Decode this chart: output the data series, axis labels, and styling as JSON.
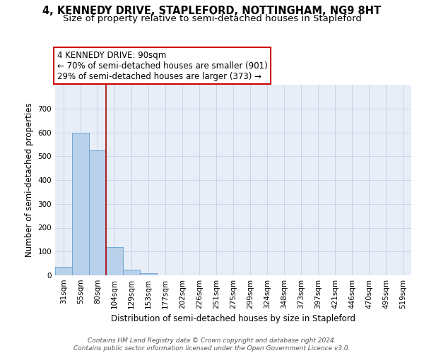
{
  "title": "4, KENNEDY DRIVE, STAPLEFORD, NOTTINGHAM, NG9 8HT",
  "subtitle": "Size of property relative to semi-detached houses in Stapleford",
  "xlabel": "Distribution of semi-detached houses by size in Stapleford",
  "ylabel": "Number of semi-detached properties",
  "categories": [
    "31sqm",
    "55sqm",
    "80sqm",
    "104sqm",
    "129sqm",
    "153sqm",
    "177sqm",
    "202sqm",
    "226sqm",
    "251sqm",
    "275sqm",
    "299sqm",
    "324sqm",
    "348sqm",
    "373sqm",
    "397sqm",
    "421sqm",
    "446sqm",
    "470sqm",
    "495sqm",
    "519sqm"
  ],
  "values": [
    35,
    600,
    525,
    120,
    25,
    10,
    0,
    0,
    0,
    0,
    0,
    0,
    0,
    0,
    0,
    0,
    0,
    0,
    0,
    0,
    0
  ],
  "bar_color": "#b8d0ea",
  "bar_edge_color": "#6fa8d6",
  "grid_color": "#c8d4e8",
  "background_color": "#e8eef8",
  "red_line_x": 2.5,
  "annotation_text": "4 KENNEDY DRIVE: 90sqm\n← 70% of semi-detached houses are smaller (901)\n29% of semi-detached houses are larger (373) →",
  "annotation_box_color": "#ffffff",
  "annotation_box_edge": "#cc0000",
  "red_line_color": "#aa0000",
  "ylim": [
    0,
    800
  ],
  "yticks": [
    0,
    100,
    200,
    300,
    400,
    500,
    600,
    700
  ],
  "footer_text": "Contains HM Land Registry data © Crown copyright and database right 2024.\nContains public sector information licensed under the Open Government Licence v3.0.",
  "title_fontsize": 10.5,
  "subtitle_fontsize": 9.5,
  "annot_fontsize": 8.5,
  "xlabel_fontsize": 8.5,
  "ylabel_fontsize": 8.5,
  "tick_fontsize": 7.5,
  "footer_fontsize": 6.5
}
